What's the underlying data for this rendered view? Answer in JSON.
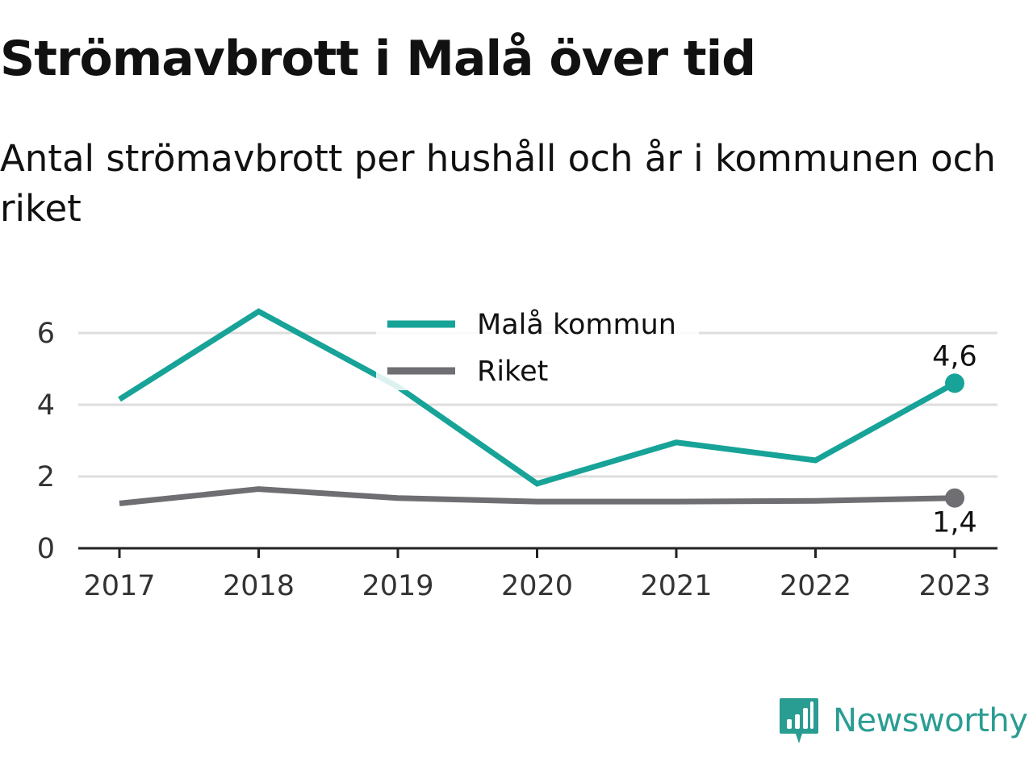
{
  "title": "Strömavbrott i Malå över tid",
  "subtitle": "Antal strömavbrott per hushåll och år i kommunen och riket",
  "brand": {
    "name": "Newsworthy",
    "icon": "bar-chart-speech-bubble-icon"
  },
  "chart_data": {
    "type": "line",
    "title": "Strömavbrott i Malå över tid",
    "subtitle": "Antal strömavbrott per hushåll och år i kommunen och riket",
    "xlabel": "",
    "ylabel": "",
    "x": [
      "2017",
      "2018",
      "2019",
      "2020",
      "2021",
      "2022",
      "2023"
    ],
    "ylim": [
      0,
      6.6
    ],
    "yticks": [
      0,
      2,
      4,
      6
    ],
    "ytick_labels": [
      "0",
      "2",
      "4",
      "6"
    ],
    "grid": true,
    "legend": "top-center",
    "series": [
      {
        "name": "Malå kommun",
        "color": "#17a398",
        "values": [
          4.15,
          6.6,
          4.5,
          1.8,
          2.95,
          2.45,
          4.6
        ],
        "end_label": "4,6"
      },
      {
        "name": "Riket",
        "color": "#6e6e73",
        "values": [
          1.25,
          1.65,
          1.4,
          1.3,
          1.3,
          1.32,
          1.4
        ],
        "end_label": "1,4"
      }
    ]
  }
}
